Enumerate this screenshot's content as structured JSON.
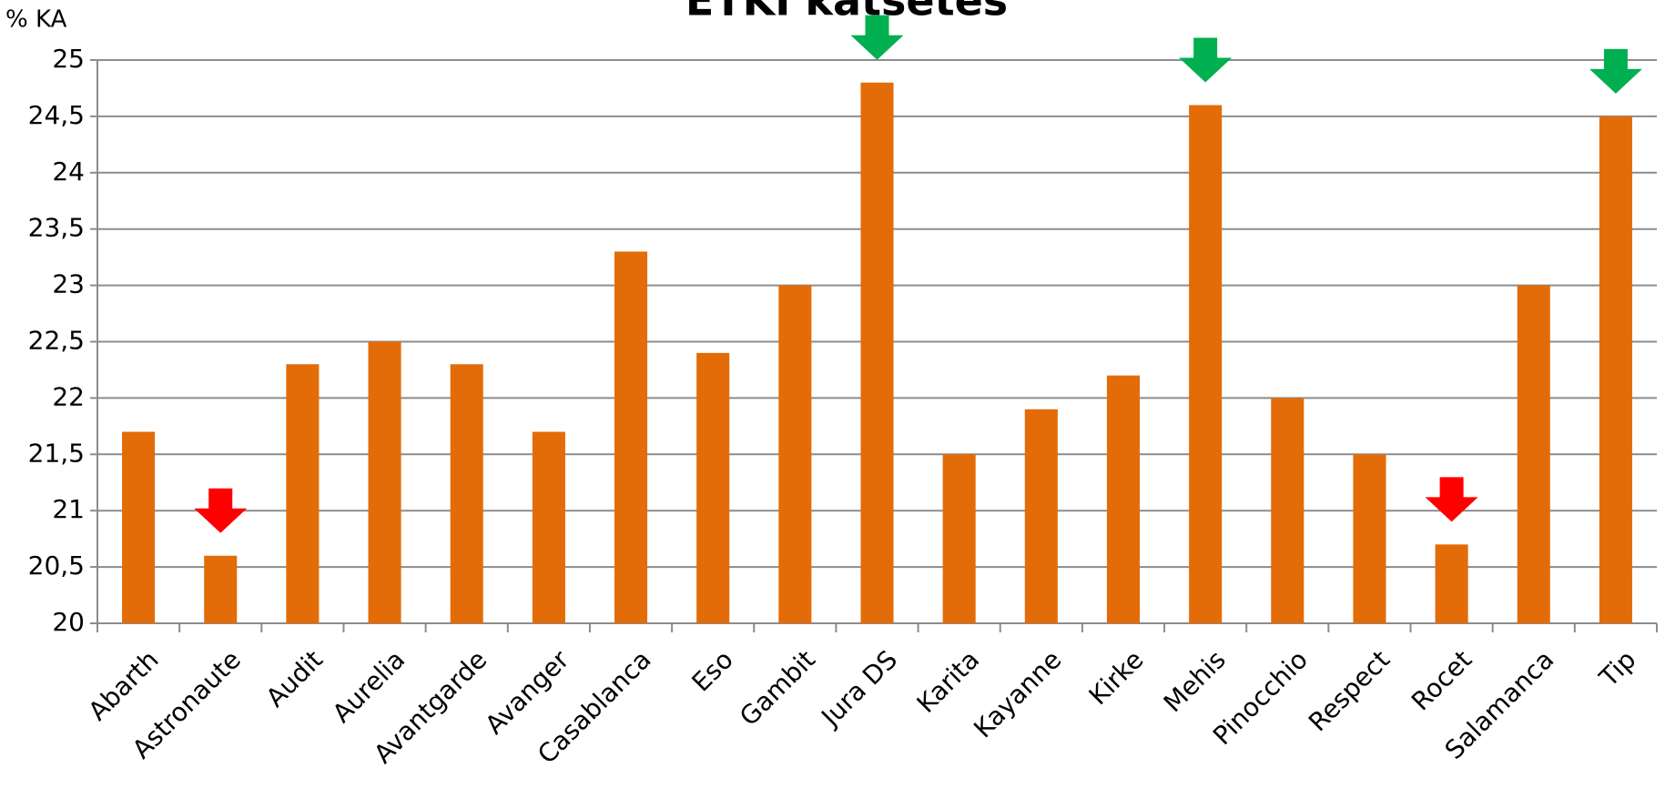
{
  "chart_data": {
    "type": "bar",
    "title": "ETKI katsetes",
    "y_label": "% KA",
    "categories": [
      "Abarth",
      "Astronaute",
      "Audit",
      "Aurelia",
      "Avantgarde",
      "Avanger",
      "Casablanca",
      "Eso",
      "Gambit",
      "Jura DS",
      "Karita",
      "Kayanne",
      "Kirke",
      "Mehis",
      "Pinocchio",
      "Respect",
      "Rocet",
      "Salamanca",
      "Tip"
    ],
    "values": [
      21.7,
      20.6,
      22.3,
      22.5,
      22.3,
      21.7,
      23.3,
      22.4,
      23.0,
      24.8,
      21.5,
      21.9,
      22.2,
      24.6,
      22.0,
      21.5,
      20.7,
      23.0,
      24.5
    ],
    "color": "#e36c09",
    "ylim": [
      20,
      25
    ],
    "yticks": [
      20,
      {
        "value": 20.5,
        "label": "20,5"
      },
      21,
      {
        "value": 21.5,
        "label": "21,5"
      },
      22,
      {
        "value": 22.5,
        "label": "22,5"
      },
      23,
      {
        "value": 23.5,
        "label": "23,5"
      },
      24,
      {
        "value": 24.5,
        "label": "24,5"
      },
      25
    ],
    "grid": true,
    "markers": [
      {
        "category": "Astronaute",
        "color": "#ff0000"
      },
      {
        "category": "Jura DS",
        "color": "#00b050"
      },
      {
        "category": "Mehis",
        "color": "#00b050"
      },
      {
        "category": "Rocet",
        "color": "#ff0000"
      },
      {
        "category": "Tip",
        "color": "#00b050"
      }
    ]
  }
}
